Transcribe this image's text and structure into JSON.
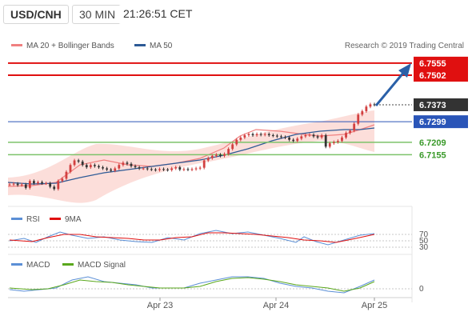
{
  "header": {
    "pair": "USD/CNH",
    "interval": "30 MIN",
    "time": "21:26:51 CET"
  },
  "credit": "Research © 2019 Trading Central",
  "legend": {
    "ma20": {
      "label": "MA 20 + Bollinger Bands",
      "color": "#f08080"
    },
    "ma50": {
      "label": "MA 50",
      "color": "#2d5a96"
    }
  },
  "colors": {
    "resistance": "#e01010",
    "support": "#7cc36a",
    "pivot": "#2a55b8",
    "current": "#333333",
    "arrow": "#2a60a8",
    "up_candle": "#d24040",
    "down_candle": "#333333",
    "band": "#fbd8d4",
    "rsi": "#5b8fd6",
    "rsi_ma": "#e01010",
    "macd": "#5b8fd6",
    "macd_signal": "#5aa81c"
  },
  "levels": {
    "r1": "6.7555",
    "r2": "6.7502",
    "current": "6.7373",
    "pivot": "6.7299",
    "s1": "6.7209",
    "s2": "6.7155"
  },
  "rsi": {
    "label": "RSI",
    "ma_label": "9MA",
    "ticks": [
      "70",
      "50",
      "30"
    ]
  },
  "macd": {
    "label": "MACD",
    "signal_label": "MACD Signal",
    "tick": "0"
  },
  "xaxis": {
    "labels": [
      "Apr 23",
      "Apr 24",
      "Apr 25"
    ]
  },
  "chart_data": {
    "type": "candlestick",
    "ylim": [
      6.695,
      6.76
    ],
    "closes": [
      6.7025,
      6.7028,
      6.7022,
      6.7025,
      6.701,
      6.704,
      6.703,
      6.7035,
      6.703,
      6.703,
      6.7015,
      6.7005,
      6.704,
      6.705,
      6.708,
      6.711,
      6.713,
      6.7125,
      6.711,
      6.71,
      6.711,
      6.7105,
      6.71,
      6.7095,
      6.709,
      6.7085,
      6.7095,
      6.711,
      6.712,
      6.7115,
      6.7105,
      6.71,
      6.7095,
      6.7095,
      6.7092,
      6.709,
      6.7088,
      6.7092,
      6.709,
      6.7088,
      6.7095,
      6.71,
      6.709,
      6.7092,
      6.709,
      6.7092,
      6.7095,
      6.7098,
      6.713,
      6.714,
      6.715,
      6.7155,
      6.715,
      6.7158,
      6.718,
      6.72,
      6.722,
      6.723,
      6.724,
      6.7245,
      6.724,
      6.7245,
      6.7242,
      6.7245,
      6.724,
      6.7238,
      6.7235,
      6.7232,
      6.723,
      6.722,
      6.7215,
      6.7225,
      6.7235,
      6.724,
      6.7242,
      6.7235,
      6.723,
      6.724,
      6.719,
      6.7205,
      6.721,
      6.7215,
      6.723,
      6.725,
      6.726,
      6.729,
      6.733,
      6.7345,
      6.7365,
      6.7375,
      6.7373
    ]
  }
}
